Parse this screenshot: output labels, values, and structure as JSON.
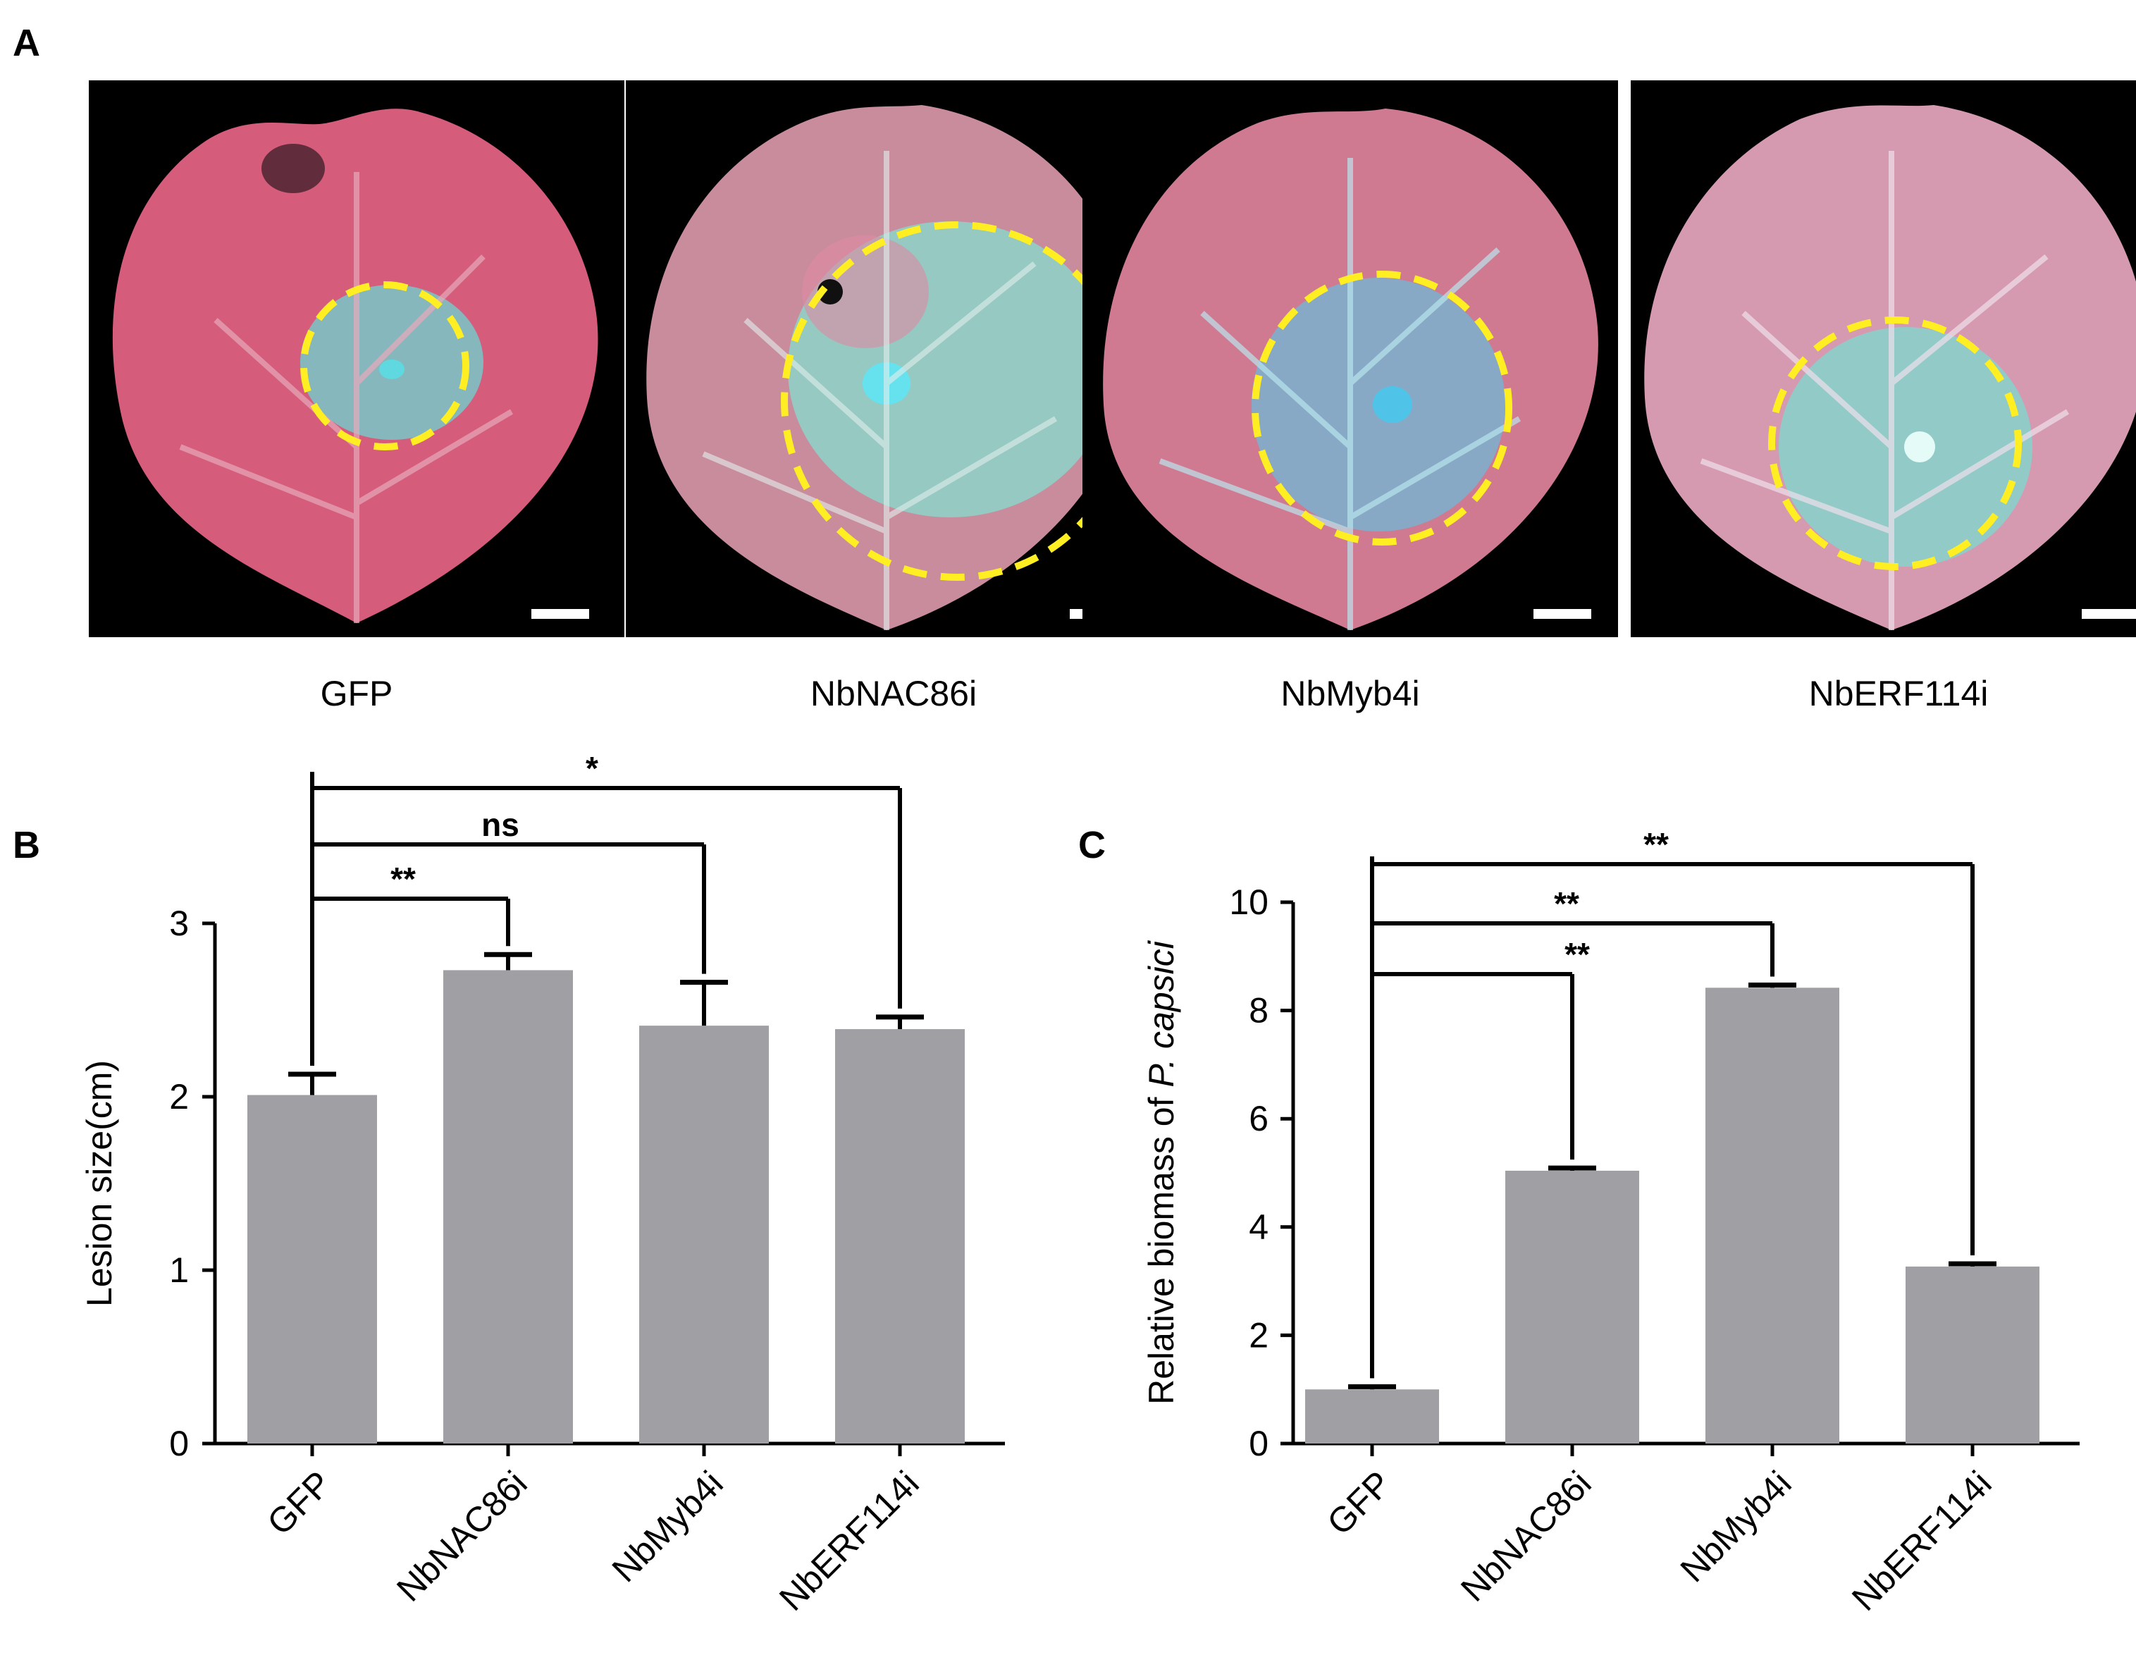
{
  "colors": {
    "bar": "#a09fa4",
    "line": "#000000",
    "circle": "#ffee22",
    "leaf_red": "#d85a78",
    "leaf_cyan": "#7ed8d6"
  },
  "panel_a": {
    "letter": "A",
    "photos": [
      {
        "label": "GFP"
      },
      {
        "label": "NbNAC86i"
      },
      {
        "label": "NbMyb4i"
      },
      {
        "label": "NbERF114i"
      }
    ]
  },
  "chart_data": [
    {
      "panel": "B",
      "type": "bar",
      "title": "",
      "xlabel": "",
      "ylabel": "Lesion size(cm)",
      "ylim": [
        0,
        3
      ],
      "yticks": [
        0,
        1,
        2,
        3
      ],
      "categories": [
        "GFP",
        "NbNAC86i",
        "NbMyb4i",
        "NbERF114i"
      ],
      "values": [
        2.01,
        2.73,
        2.41,
        2.39
      ],
      "errors": [
        0.12,
        0.09,
        0.25,
        0.07
      ],
      "comparisons": [
        {
          "from": 0,
          "to": 1,
          "label": "**"
        },
        {
          "from": 0,
          "to": 2,
          "label": "ns"
        },
        {
          "from": 0,
          "to": 3,
          "label": "*"
        }
      ]
    },
    {
      "panel": "C",
      "type": "bar",
      "title": "",
      "xlabel": "",
      "ylabel_prefix": "Relative biomass of ",
      "ylabel_italic": "P. capsici",
      "ylim": [
        0,
        10
      ],
      "yticks": [
        0,
        2,
        4,
        6,
        8,
        10
      ],
      "categories": [
        "GFP",
        "NbNAC86i",
        "NbMyb4i",
        "NbERF114i"
      ],
      "values": [
        1.0,
        5.04,
        8.42,
        3.27
      ],
      "errors": [
        0.05,
        0.05,
        0.05,
        0.05
      ],
      "comparisons": [
        {
          "from": 0,
          "to": 1,
          "label": "**"
        },
        {
          "from": 0,
          "to": 2,
          "label": "**"
        },
        {
          "from": 0,
          "to": 3,
          "label": "**"
        }
      ]
    }
  ]
}
